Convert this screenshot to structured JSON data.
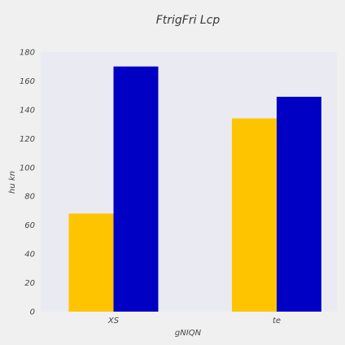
{
  "chart_data": {
    "type": "bar",
    "title": "FtrigFri Lcp",
    "xlabel": "gNIQN",
    "ylabel": "hu kn",
    "categories": [
      "XS",
      "te"
    ],
    "series": [
      {
        "values": [
          68,
          134
        ],
        "color": "#ffc400"
      },
      {
        "values": [
          170,
          149
        ],
        "color": "#0000c4"
      }
    ],
    "ylim": [
      0,
      180
    ],
    "yticks": [
      0,
      20,
      40,
      60,
      80,
      100,
      120,
      140,
      160,
      180
    ],
    "grid": false,
    "plot_background": "#eaeaf2",
    "page_background": "#f0f0f0"
  }
}
